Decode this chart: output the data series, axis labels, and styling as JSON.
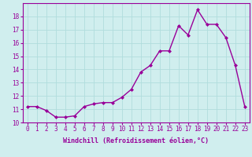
{
  "x": [
    0,
    1,
    2,
    3,
    4,
    5,
    6,
    7,
    8,
    9,
    10,
    11,
    12,
    13,
    14,
    15,
    16,
    17,
    18,
    19,
    20,
    21,
    22,
    23
  ],
  "y": [
    11.2,
    11.2,
    10.9,
    10.4,
    10.4,
    10.5,
    11.2,
    11.4,
    11.5,
    11.5,
    11.9,
    12.5,
    13.8,
    14.3,
    15.4,
    15.4,
    17.3,
    16.6,
    18.5,
    17.4,
    17.4,
    16.4,
    14.3,
    11.2
  ],
  "line_color": "#990099",
  "marker": "D",
  "markersize": 2,
  "linewidth": 1,
  "bg_color": "#d0eeee",
  "grid_color": "#b0dddd",
  "xlabel": "Windchill (Refroidissement éolien,°C)",
  "ylim": [
    10,
    19
  ],
  "yticks": [
    10,
    11,
    12,
    13,
    14,
    15,
    16,
    17,
    18
  ],
  "xlim": [
    -0.5,
    23.5
  ],
  "xticks": [
    0,
    1,
    2,
    3,
    4,
    5,
    6,
    7,
    8,
    9,
    10,
    11,
    12,
    13,
    14,
    15,
    16,
    17,
    18,
    19,
    20,
    21,
    22,
    23
  ],
  "tick_fontsize": 5.5,
  "label_fontsize": 6.0
}
